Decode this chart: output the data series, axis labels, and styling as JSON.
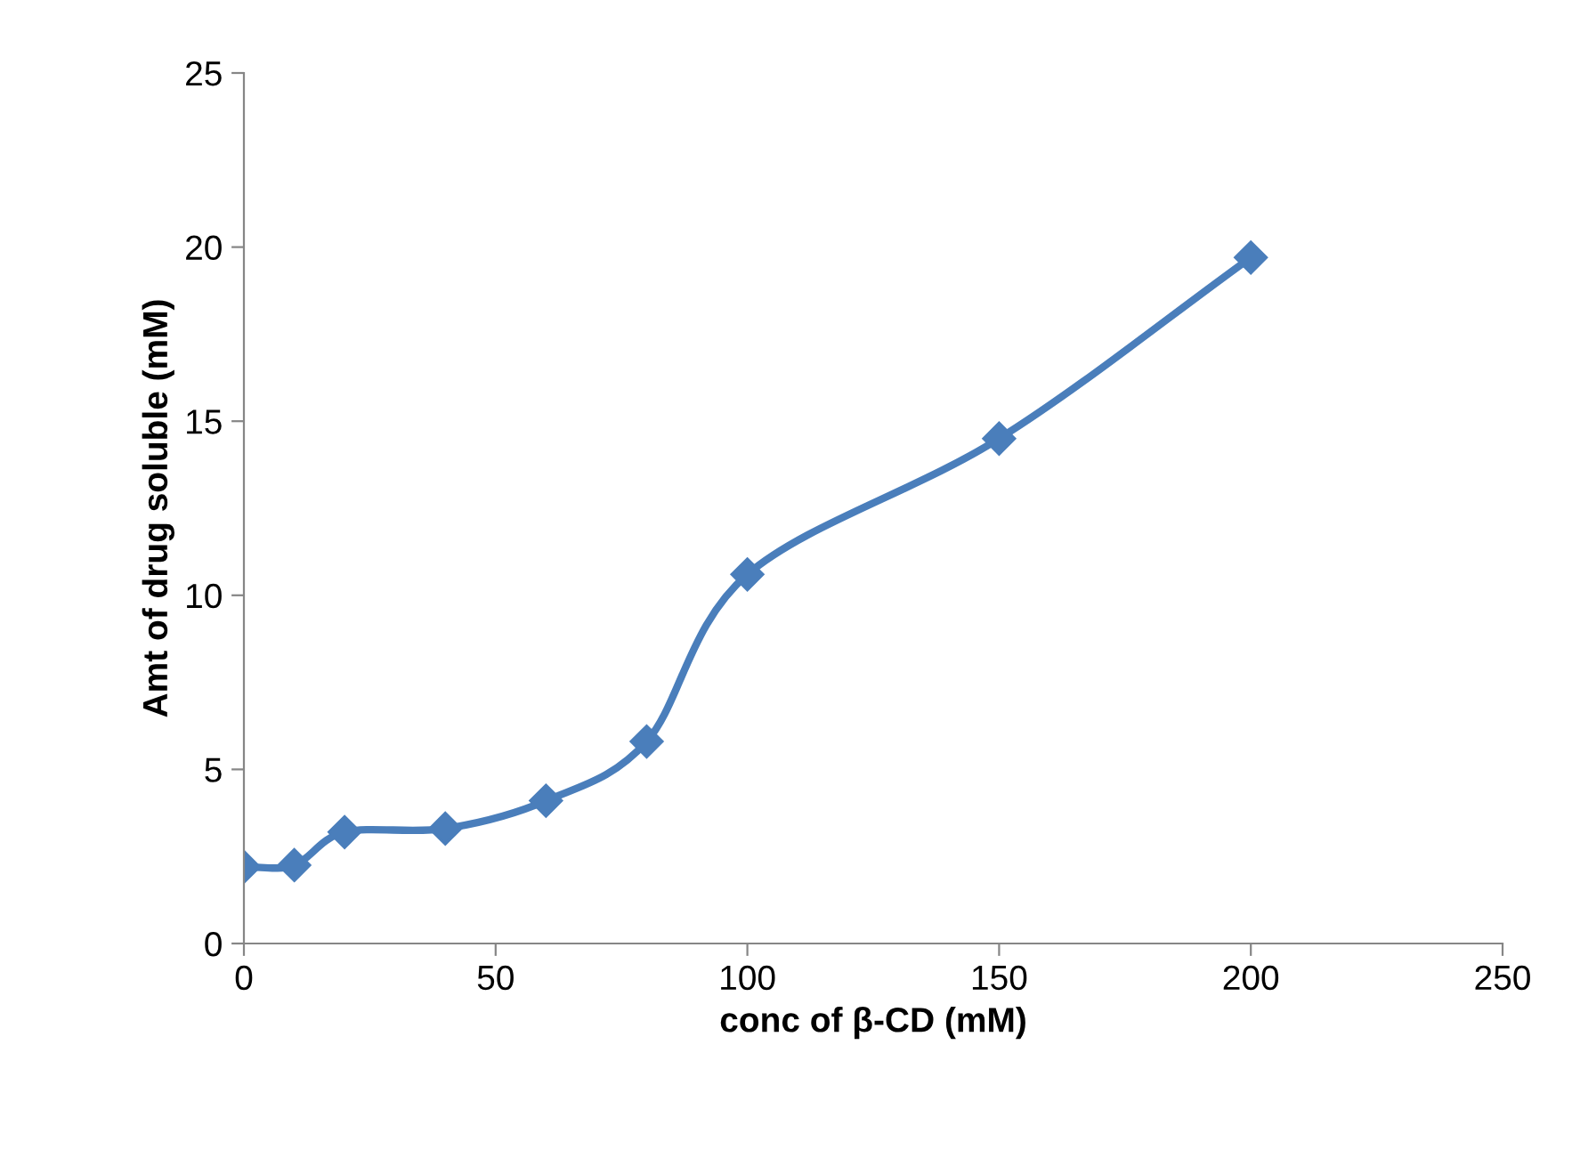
{
  "chart_data": {
    "type": "line",
    "xlabel": "conc of β-CD (mM)",
    "ylabel": "Amt of drug soluble (mM)",
    "x": [
      0,
      10,
      20,
      40,
      60,
      80,
      100,
      150,
      200
    ],
    "series": [
      {
        "color": "#4a7ebb",
        "values": [
          2.2,
          2.25,
          3.2,
          3.3,
          4.1,
          5.8,
          10.6,
          14.5,
          19.7
        ]
      }
    ],
    "xlim": [
      0,
      250
    ],
    "xticks": [
      0,
      50,
      100,
      150,
      200,
      250
    ],
    "ylim": [
      0,
      25
    ],
    "yticks": [
      0,
      5,
      10,
      15,
      20,
      25
    ],
    "grid": false,
    "marker": "diamond",
    "line_style": "solid"
  }
}
